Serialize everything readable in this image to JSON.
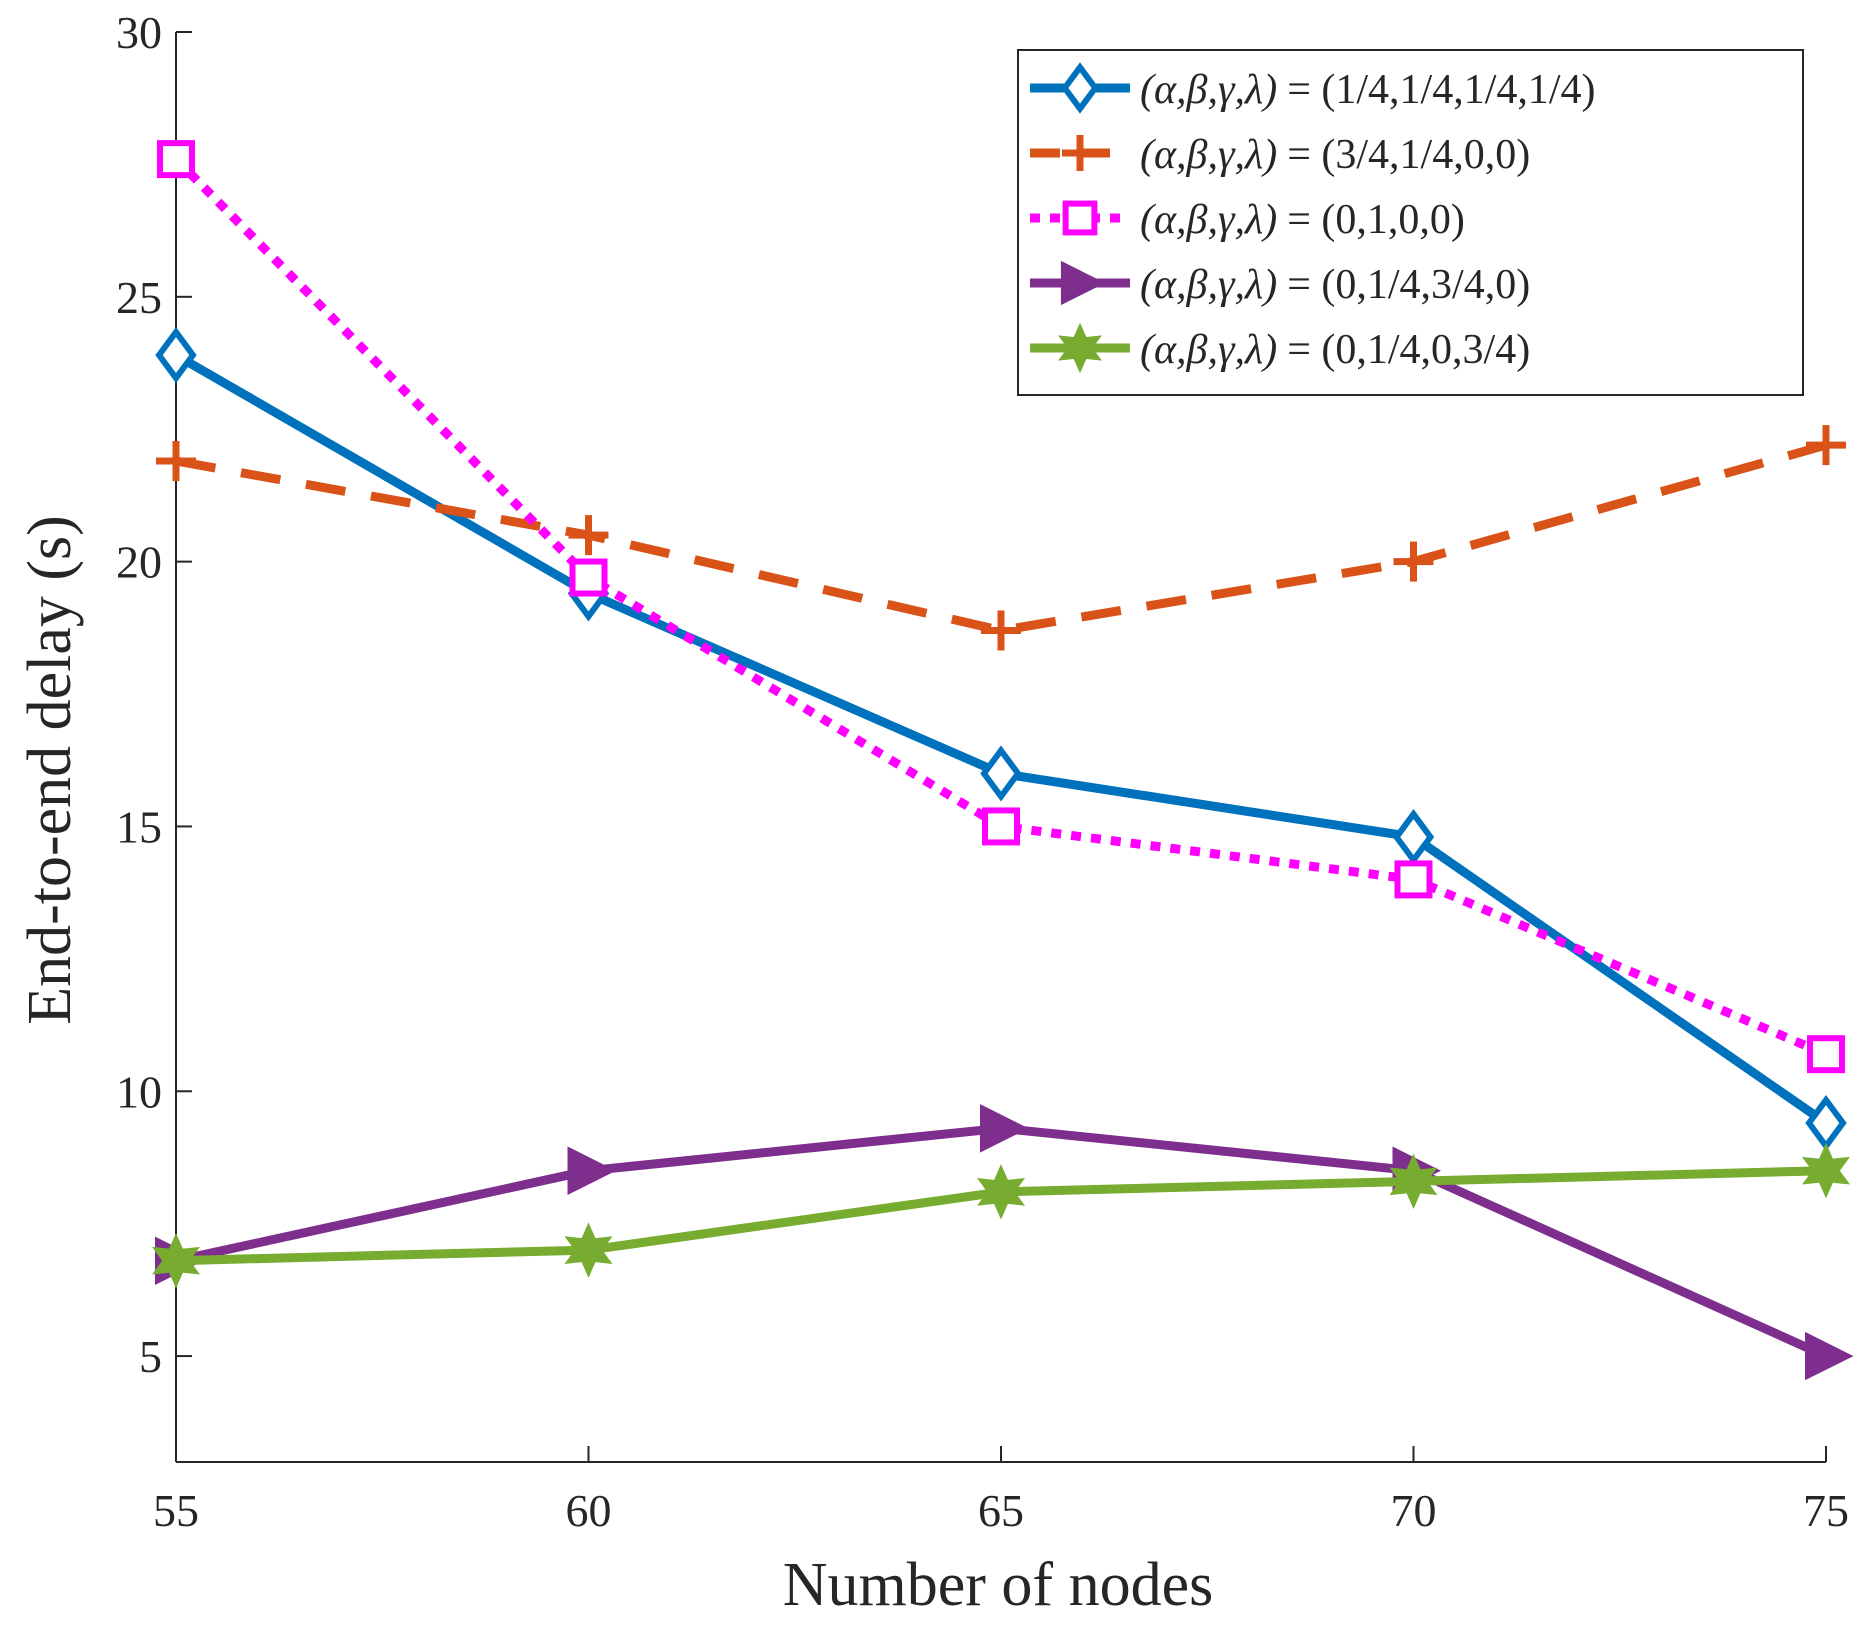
{
  "chart_data": {
    "type": "line",
    "title": "",
    "xlabel": "Number of nodes",
    "ylabel": "End-to-end delay (s)",
    "xlim": [
      55,
      75
    ],
    "ylim": [
      3,
      30
    ],
    "xticks": [
      55,
      60,
      65,
      70,
      75
    ],
    "yticks": [
      5,
      10,
      15,
      20,
      25,
      30
    ],
    "x": [
      55,
      60,
      65,
      70,
      75
    ],
    "grid": false,
    "legend_position": "top-right",
    "series": [
      {
        "name": "(α,β,γ,λ) = (1/4,1/4,1/4,1/4)",
        "params_prefix": "(α,β,γ,λ)",
        "params_value": "= (1/4,1/4,1/4,1/4)",
        "values": [
          23.9,
          19.4,
          16.0,
          14.8,
          9.4
        ],
        "color": "#0072BD",
        "line_style": "solid",
        "marker": "diamond"
      },
      {
        "name": "(α,β,γ,λ) = (3/4,1/4,0,0)",
        "params_prefix": "(α,β,γ,λ)",
        "params_value": "= (3/4,1/4,0,0)",
        "values": [
          21.9,
          20.5,
          18.7,
          20.0,
          22.2
        ],
        "color": "#D95319",
        "line_style": "dashed",
        "marker": "plus"
      },
      {
        "name": "(α,β,γ,λ) = (0,1,0,0)",
        "params_prefix": "(α,β,γ,λ)",
        "params_value": "= (0,1,0,0)",
        "values": [
          27.6,
          19.7,
          15.0,
          14.0,
          10.7
        ],
        "color": "#FF00FF",
        "line_style": "dotted",
        "marker": "square"
      },
      {
        "name": "(α,β,γ,λ) = (0,1/4,3/4,0)",
        "params_prefix": "(α,β,γ,λ)",
        "params_value": "= (0,1/4,3/4,0)",
        "values": [
          6.8,
          8.5,
          9.3,
          8.5,
          5.0
        ],
        "color": "#7E2F8E",
        "line_style": "solid",
        "marker": "triangle-right"
      },
      {
        "name": "(α,β,γ,λ) = (0,1/4,0,3/4)",
        "params_prefix": "(α,β,γ,λ)",
        "params_value": "= (0,1/4,0,3/4)",
        "values": [
          6.8,
          7.0,
          8.1,
          8.3,
          8.5
        ],
        "color": "#77AC30",
        "line_style": "solid",
        "marker": "hexagram"
      }
    ]
  }
}
